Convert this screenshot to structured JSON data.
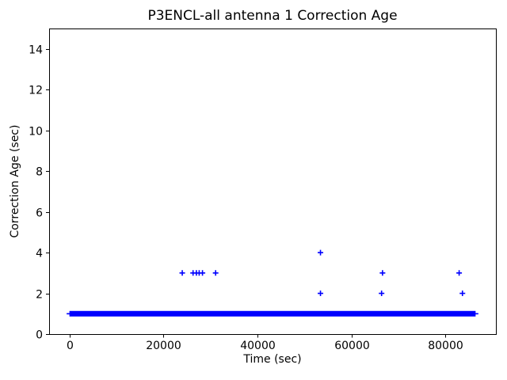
{
  "chart_data": {
    "type": "scatter",
    "title": "P3ENCL-all antenna 1 Correction Age",
    "xlabel": "Time (sec)",
    "ylabel": "Correction Age (sec)",
    "xlim": [
      -4320,
      90720
    ],
    "ylim": [
      0,
      15
    ],
    "x_ticks": [
      0,
      20000,
      40000,
      60000,
      80000
    ],
    "y_ticks": [
      0,
      2,
      4,
      6,
      8,
      10,
      12,
      14
    ],
    "grid": false,
    "legend": "none",
    "marker": "+",
    "marker_color": "#0000ff",
    "axis_color": "#000000",
    "background_color": "#ffffff",
    "series": [
      {
        "name": "correction-age",
        "band": {
          "y": 1,
          "x_start": 0,
          "x_end": 86400,
          "description": "continuous overlapping + markers at correction age 1 sec spanning the full day"
        },
        "outliers": [
          {
            "x": 24000,
            "y": 3
          },
          {
            "x": 26300,
            "y": 3
          },
          {
            "x": 27000,
            "y": 3
          },
          {
            "x": 27600,
            "y": 3
          },
          {
            "x": 28300,
            "y": 3
          },
          {
            "x": 31100,
            "y": 3
          },
          {
            "x": 53400,
            "y": 4
          },
          {
            "x": 53400,
            "y": 2
          },
          {
            "x": 66400,
            "y": 2
          },
          {
            "x": 66600,
            "y": 3
          },
          {
            "x": 82900,
            "y": 3
          },
          {
            "x": 83600,
            "y": 2
          }
        ]
      }
    ]
  }
}
